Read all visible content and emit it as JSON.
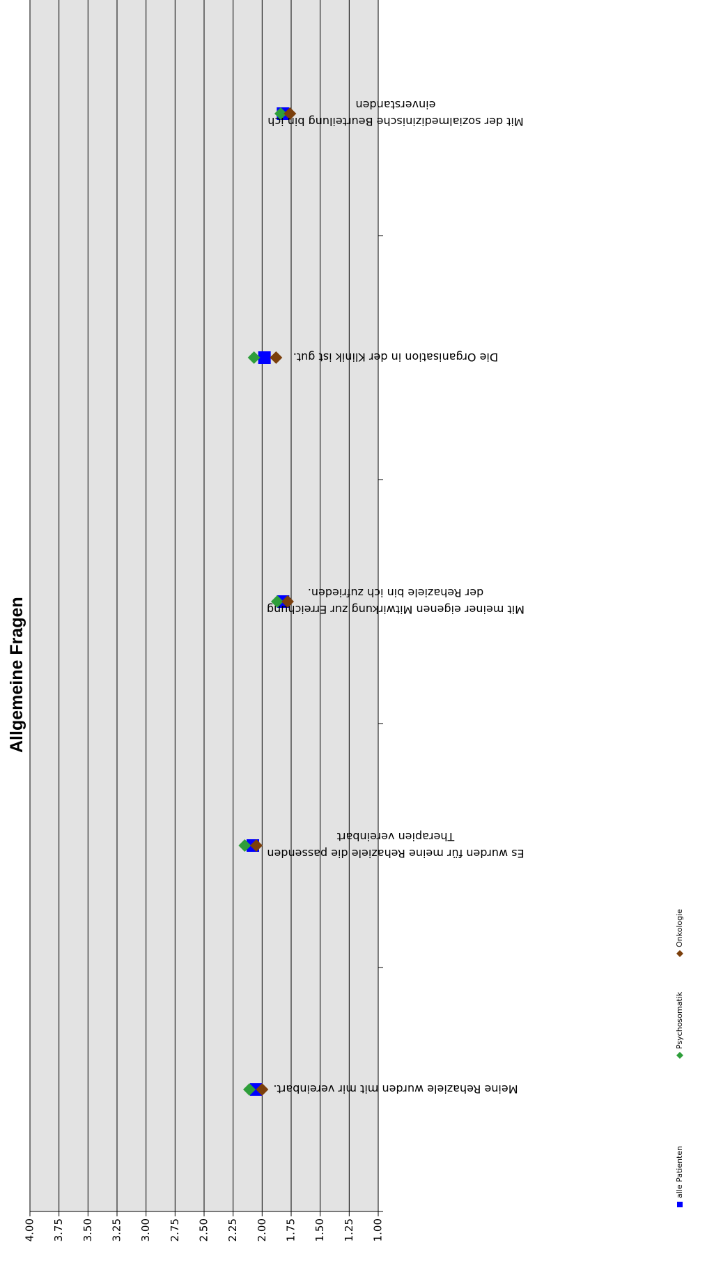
{
  "chart_data": {
    "type": "scatter",
    "title": "Allgemeine Fragen",
    "categories": [
      [
        "Meine Rehaziele wurden mit mir vereinbart."
      ],
      [
        "Es wurden für meine Rehaziele die passenden",
        "Therapien vereinbart"
      ],
      [
        "Mit meiner eigenen Mitwirkung zur Erreichung",
        "der Rehaziele bin ich zufrieden."
      ],
      [
        "Die Organisation in der Klinik ist gut."
      ],
      [
        "Mit der sozialmedizinische Beurteilung bin ich",
        "einverstanden"
      ]
    ],
    "y_ticks": [
      "4.00",
      "3.75",
      "3.50",
      "3.25",
      "3.00",
      "2.75",
      "2.50",
      "2.25",
      "2.00",
      "1.75",
      "1.50",
      "1.25",
      "1.00"
    ],
    "ylim": [
      1.0,
      4.0
    ],
    "grid": true,
    "legend_position": "bottom",
    "orientation": "rotated-180",
    "series": [
      {
        "name": "alle Patienten",
        "marker": "square",
        "color": "#0000ff",
        "values": [
          2.05,
          2.08,
          1.82,
          1.98,
          1.82
        ]
      },
      {
        "name": "Psychosomatik",
        "marker": "diamond",
        "color": "#2e9e3a",
        "values": [
          2.11,
          2.15,
          1.87,
          2.07,
          1.84
        ]
      },
      {
        "name": "Onkologie",
        "marker": "diamond",
        "color": "#7b3f0c",
        "values": [
          2.0,
          2.05,
          1.78,
          1.88,
          1.76
        ]
      }
    ]
  }
}
